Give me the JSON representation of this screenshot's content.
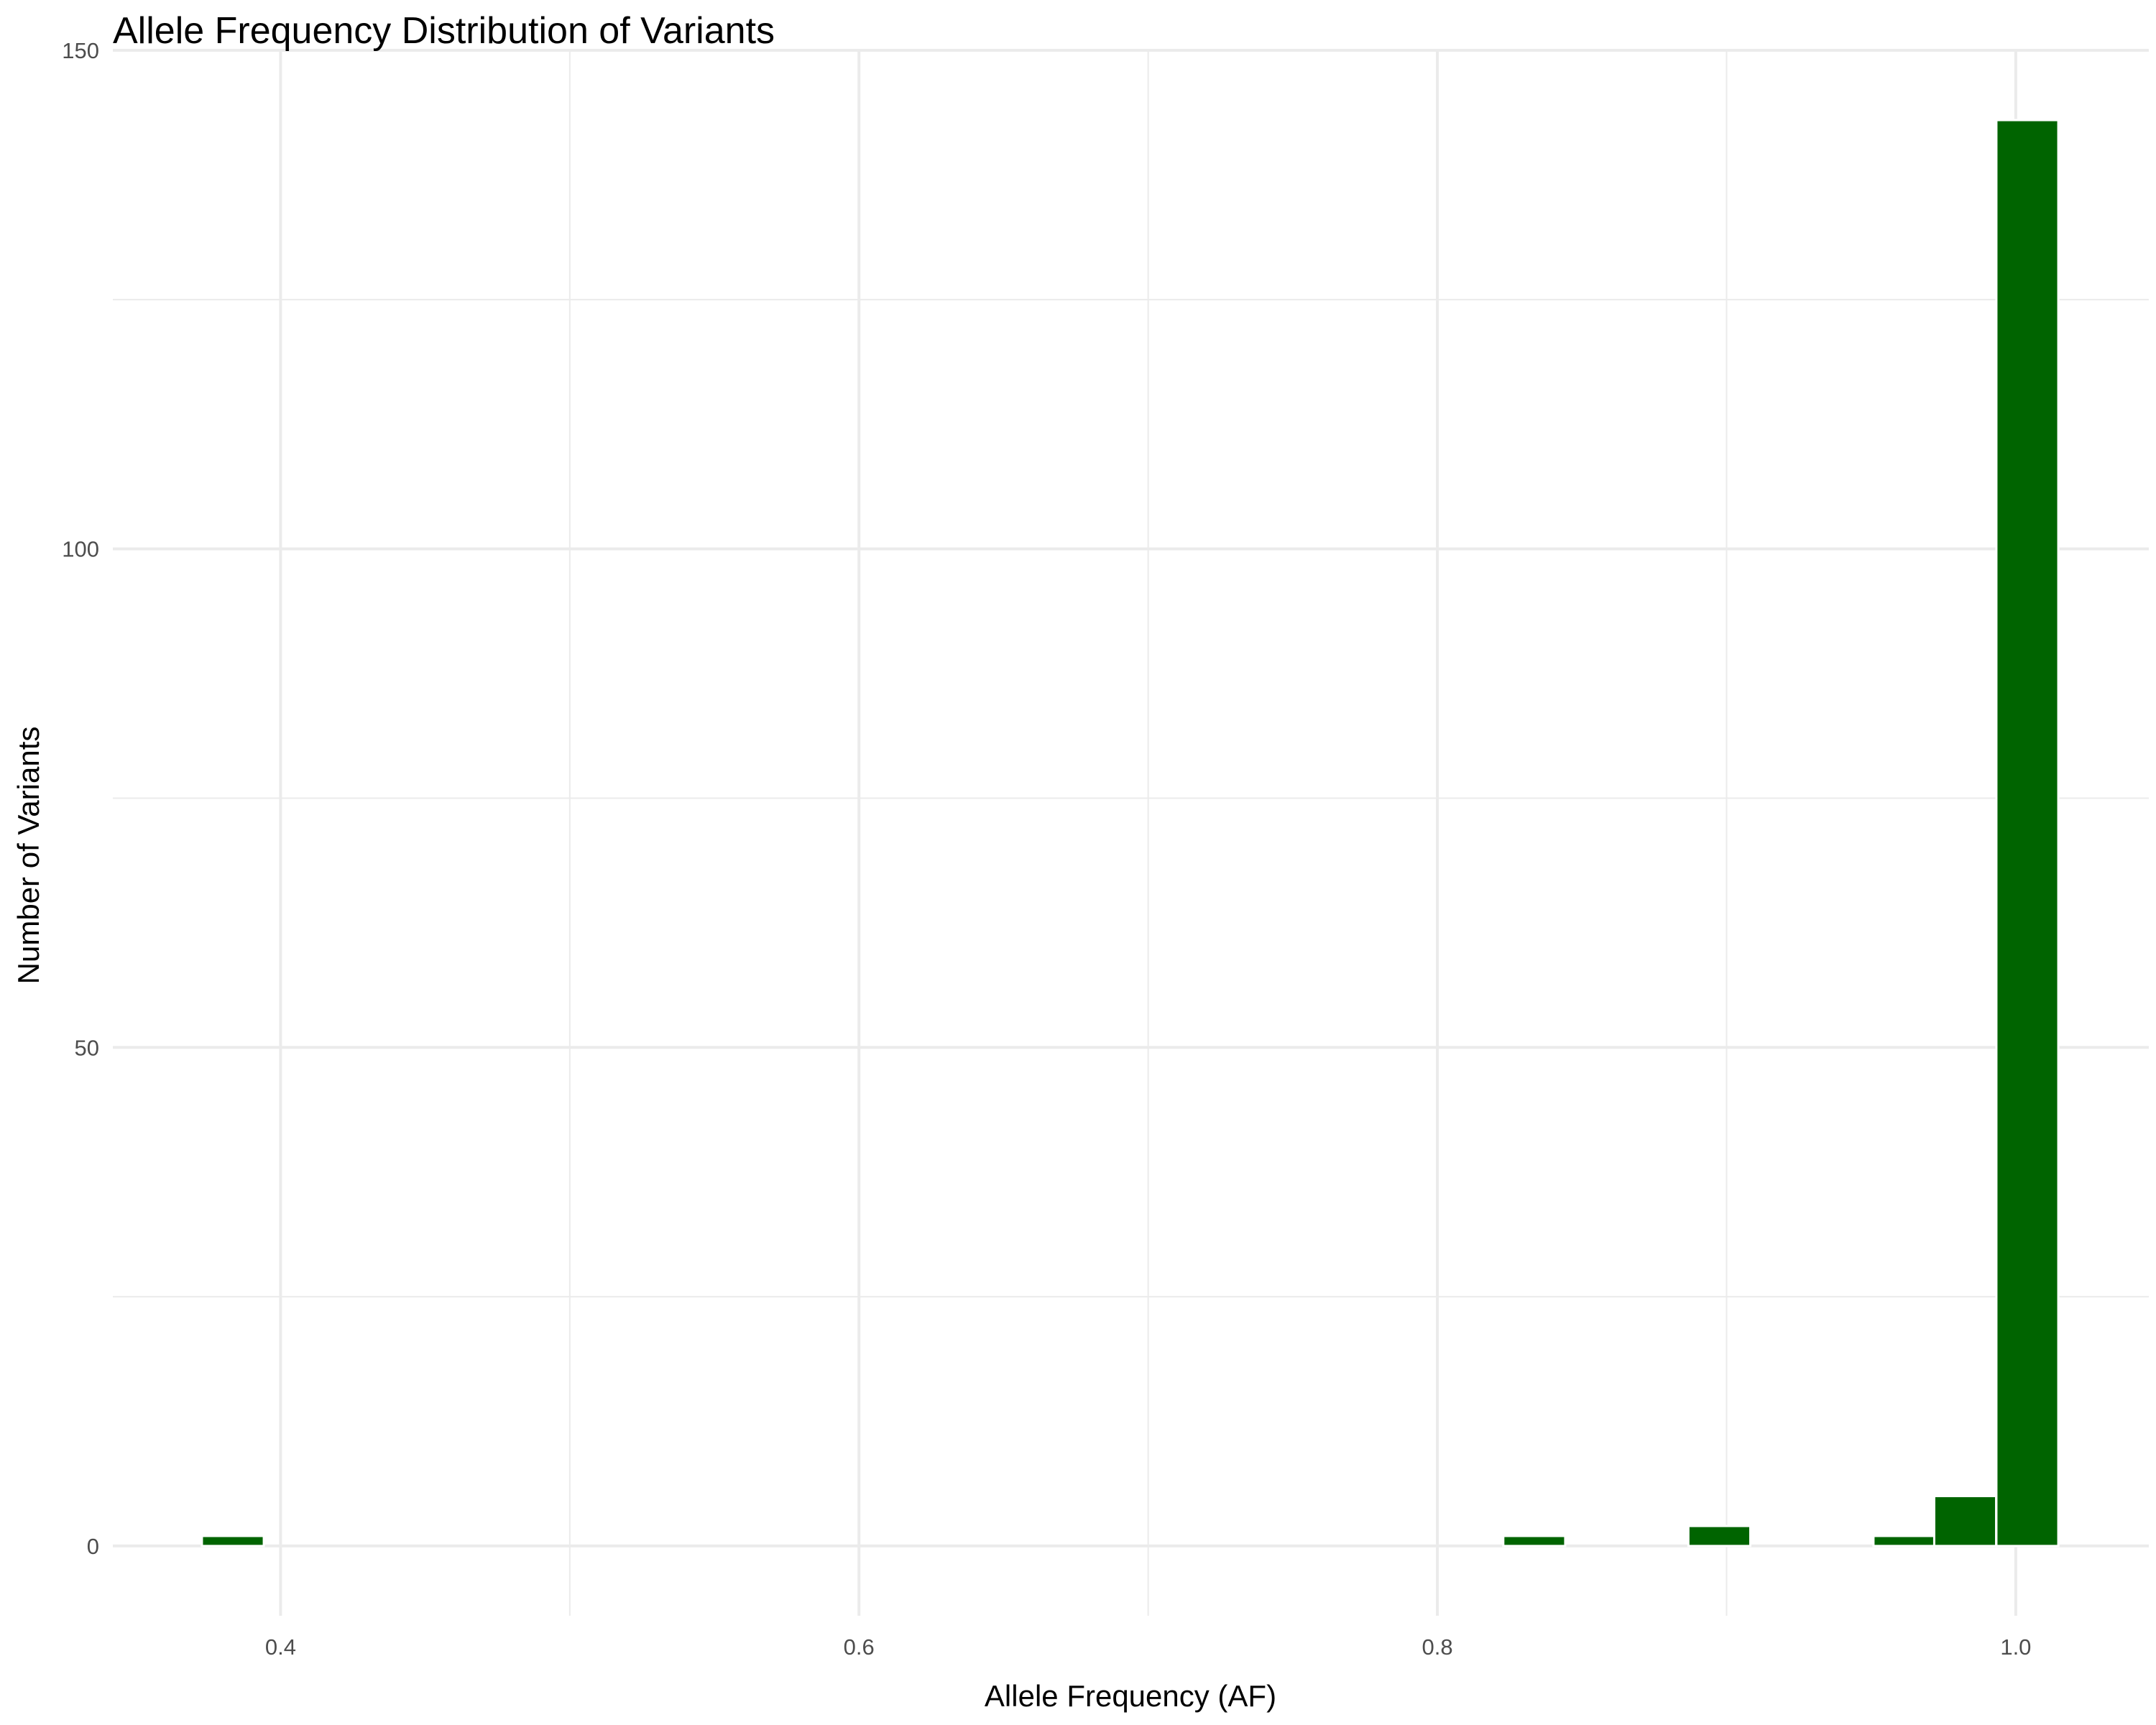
{
  "chart_data": {
    "type": "bar",
    "title": "Allele Frequency Distribution of Variants",
    "xlabel": "Allele Frequency (AF)",
    "ylabel": "Number of Variants",
    "xlim": [
      0.342,
      1.046
    ],
    "ylim": [
      -7,
      150
    ],
    "x_ticks": [
      0.4,
      0.6,
      0.8,
      1.0
    ],
    "x_tick_labels": [
      "0.4",
      "0.6",
      "0.8",
      "1.0"
    ],
    "y_ticks": [
      0,
      50,
      100,
      150
    ],
    "y_tick_labels": [
      "0",
      "50",
      "100",
      "150"
    ],
    "bin_width": 0.0214,
    "bins": [
      {
        "center": 0.3835,
        "count": 1
      },
      {
        "center": 0.8335,
        "count": 1
      },
      {
        "center": 0.8975,
        "count": 2
      },
      {
        "center": 0.9615,
        "count": 1
      },
      {
        "center": 0.9825,
        "count": 5
      },
      {
        "center": 1.004,
        "count": 143
      }
    ],
    "bar_color": "#006400",
    "bar_outline": "#ffffff",
    "grid": true,
    "legend": "none"
  }
}
